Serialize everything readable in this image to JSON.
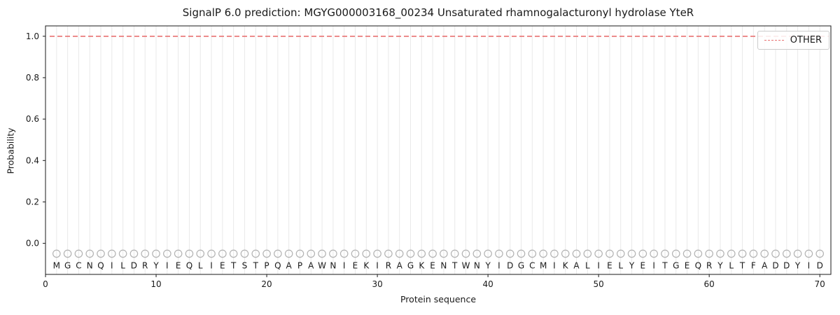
{
  "chart_data": {
    "type": "line",
    "title": "SignalP 6.0 prediction: MGYG000003168_00234 Unsaturated rhamnogalacturonyl hydrolase YteR",
    "xlabel": "Protein sequence",
    "ylabel": "Probability",
    "xlim": [
      0,
      71
    ],
    "ylim": [
      -0.15,
      1.05
    ],
    "x_ticks": [
      0,
      10,
      20,
      30,
      40,
      50,
      60,
      70
    ],
    "y_ticks": [
      0.0,
      0.2,
      0.4,
      0.6,
      0.8,
      1.0
    ],
    "grid": "vertical-line-per-residue",
    "legend": {
      "position": "upper right",
      "entries": [
        {
          "label": "OTHER",
          "color": "#e87272",
          "style": "dashed"
        }
      ]
    },
    "series": [
      {
        "name": "OTHER",
        "style": "dashed",
        "color": "#e87272",
        "x": [
          1,
          70
        ],
        "y": [
          1.0,
          1.0
        ]
      }
    ],
    "sequence": "MGCNQILDRYIEQLIETSTPQAPAWNIEKIRAGKENTWNYIDGCMIKALIELYEITGEQRYLTFADDYID",
    "marker_row": {
      "y": -0.05,
      "symbol": "circle"
    },
    "letters_y": -0.107,
    "colors": {
      "grid": "#e9e9e9",
      "frame": "#1a1a1a",
      "text": "#1a1a1a",
      "marker": "#b3b3b3",
      "line": "#e87272"
    }
  }
}
